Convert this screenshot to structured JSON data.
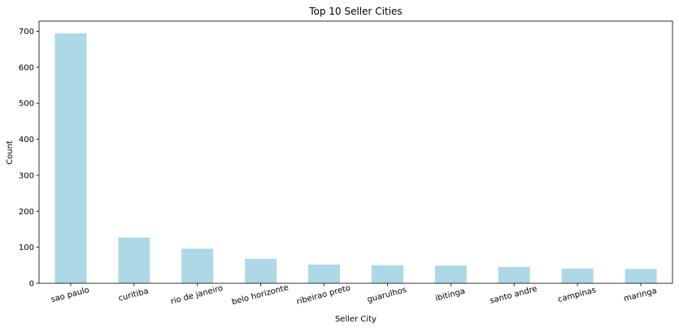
{
  "chart_data": {
    "type": "bar",
    "title": "Top 10 Seller Cities",
    "xlabel": "Seller City",
    "ylabel": "Count",
    "categories": [
      "sao paulo",
      "curitiba",
      "rio de janeiro",
      "belo horizonte",
      "ribeirao preto",
      "guarulhos",
      "ibitinga",
      "santo andre",
      "campinas",
      "maringa"
    ],
    "values": [
      694,
      127,
      96,
      68,
      52,
      50,
      49,
      45,
      41,
      40
    ],
    "ylim": [
      0,
      728
    ],
    "yticks": [
      0,
      100,
      200,
      300,
      400,
      500,
      600,
      700
    ],
    "bar_color": "#add8e6",
    "grid": false
  }
}
